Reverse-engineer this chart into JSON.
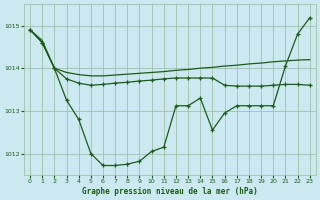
{
  "background_color": "#cce8f0",
  "grid_color": "#99bb99",
  "line_color": "#1a5c1a",
  "title": "Graphe pression niveau de la mer (hPa)",
  "xlim": [
    -0.5,
    23.5
  ],
  "ylim": [
    1011.5,
    1015.5
  ],
  "yticks": [
    1012,
    1013,
    1014,
    1015
  ],
  "xticks": [
    0,
    1,
    2,
    3,
    4,
    5,
    6,
    7,
    8,
    9,
    10,
    11,
    12,
    13,
    14,
    15,
    16,
    17,
    18,
    19,
    20,
    21,
    22,
    23
  ],
  "line1_x": [
    0,
    1,
    2,
    3,
    4,
    5,
    6,
    7,
    8,
    9,
    10,
    11,
    12,
    13,
    14,
    15,
    16,
    17,
    18,
    19,
    20,
    21,
    22,
    23
  ],
  "line1_y": [
    1014.9,
    1014.65,
    1014.0,
    1013.9,
    1013.85,
    1013.82,
    1013.82,
    1013.84,
    1013.86,
    1013.88,
    1013.9,
    1013.92,
    1013.95,
    1013.97,
    1014.0,
    1014.02,
    1014.05,
    1014.07,
    1014.1,
    1014.12,
    1014.15,
    1014.17,
    1014.19,
    1014.2
  ],
  "line2_x": [
    0,
    1,
    2,
    3,
    4,
    5,
    6,
    7,
    8,
    9,
    10,
    11,
    12,
    13,
    14,
    15,
    16,
    17,
    18,
    19,
    20,
    21,
    22,
    23
  ],
  "line2_y": [
    1014.9,
    1014.6,
    1014.0,
    1013.75,
    1013.65,
    1013.6,
    1013.62,
    1013.65,
    1013.67,
    1013.7,
    1013.72,
    1013.75,
    1013.77,
    1013.77,
    1013.77,
    1013.77,
    1013.6,
    1013.58,
    1013.58,
    1013.58,
    1013.6,
    1013.62,
    1013.62,
    1013.6
  ],
  "line3_x": [
    0,
    1,
    2,
    3,
    4,
    5,
    6,
    7,
    8,
    9,
    10,
    11,
    12,
    13,
    14,
    15,
    16,
    17,
    18,
    19,
    20,
    21,
    22,
    23
  ],
  "line3_y": [
    1014.9,
    1014.6,
    1014.0,
    1013.25,
    1012.8,
    1012.0,
    1011.72,
    1011.72,
    1011.75,
    1011.82,
    1012.05,
    1012.15,
    1013.12,
    1013.12,
    1013.3,
    1012.55,
    1012.95,
    1013.12,
    1013.12,
    1013.12,
    1013.12,
    1014.05,
    1014.8,
    1015.18
  ]
}
